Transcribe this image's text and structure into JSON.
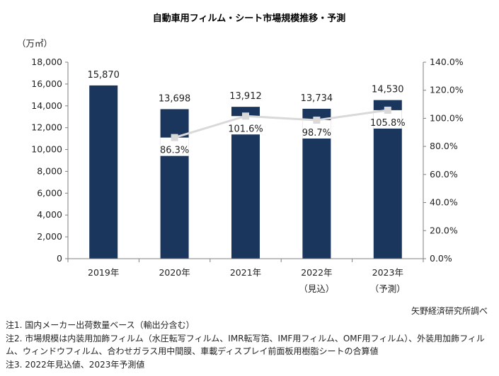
{
  "chart_data": {
    "type": "bar",
    "title": "自動車用フィルム・シート市場規模推移・予測",
    "unit_label": "（万㎡）",
    "categories": [
      "2019年",
      "2020年",
      "2021年",
      "2022年",
      "2023年"
    ],
    "category_sublabels": [
      "",
      "",
      "",
      "（見込）",
      "（予測）"
    ],
    "series": [
      {
        "name": "",
        "type": "bar",
        "axis": "left",
        "values": [
          15870,
          13698,
          13912,
          13734,
          14530
        ],
        "labels": [
          "15,870",
          "13,698",
          "13,912",
          "13,734",
          "14,530"
        ]
      },
      {
        "name": "",
        "type": "line",
        "axis": "right",
        "values": [
          null,
          86.3,
          101.6,
          98.7,
          105.8
        ],
        "labels": [
          "",
          "86.3%",
          "101.6%",
          "98.7%",
          "105.8%"
        ]
      }
    ],
    "left_axis": {
      "ylim": [
        0,
        18000
      ],
      "ticks": [
        0,
        2000,
        4000,
        6000,
        8000,
        10000,
        12000,
        14000,
        16000,
        18000
      ],
      "tick_labels": [
        "0",
        "2,000",
        "4,000",
        "6,000",
        "8,000",
        "10,000",
        "12,000",
        "14,000",
        "16,000",
        "18,000"
      ]
    },
    "right_axis": {
      "ylim": [
        0,
        140
      ],
      "ticks": [
        0,
        20,
        40,
        60,
        80,
        100,
        120,
        140
      ],
      "tick_labels": [
        "0.0%",
        "20.0%",
        "40.0%",
        "60.0%",
        "80.0%",
        "100.0%",
        "120.0%",
        "140.0%"
      ]
    },
    "grid": false,
    "colors": {
      "bar": "#1b365d",
      "line": "#d9d9d9",
      "marker": "#d9d9d9"
    }
  },
  "source": "矢野経済研究所調べ",
  "notes": [
    "注1. 国内メーカー出荷数量ベース（輸出分含む）",
    "注2. 市場規模は内装用加飾フィルム（水圧転写フィルム、IMR転写箔、IMF用フィルム、OMF用フィルム）、外装用加飾フィルム、ウィンドウフィルム、合わせガラス用中間膜、車載ディスプレイ前面板用樹脂シートの合算値",
    "注3. 2022年見込値、2023年予測値"
  ]
}
